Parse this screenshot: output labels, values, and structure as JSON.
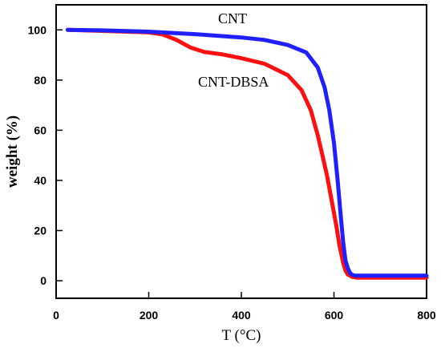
{
  "chart_data": {
    "type": "line",
    "title": "",
    "xlabel": "T (°C)",
    "ylabel": "weight (%)",
    "xlim": [
      0,
      800
    ],
    "ylim": [
      -7,
      110
    ],
    "xticks": [
      0,
      200,
      400,
      600,
      800
    ],
    "yticks": [
      0,
      20,
      40,
      60,
      80,
      100
    ],
    "grid": false,
    "legend": "none",
    "series": [
      {
        "name": "CNT",
        "color": "#2020ff",
        "x": [
          25,
          100,
          200,
          300,
          400,
          450,
          500,
          540,
          565,
          580,
          590,
          600,
          608,
          615,
          620,
          625,
          630,
          635,
          640,
          645,
          650,
          660,
          700,
          800
        ],
        "y": [
          100,
          99.8,
          99.3,
          98.3,
          97,
          96,
          94,
          91,
          85,
          77,
          68,
          55,
          40,
          25,
          15,
          8,
          5,
          3,
          2.3,
          2,
          2,
          2,
          2,
          2
        ]
      },
      {
        "name": "CNT-DBSA",
        "color": "#ff1010",
        "x": [
          25,
          100,
          200,
          230,
          260,
          290,
          320,
          360,
          400,
          450,
          500,
          530,
          550,
          565,
          575,
          585,
          595,
          605,
          612,
          620,
          625,
          630,
          640,
          650,
          700,
          800
        ],
        "y": [
          100,
          99.6,
          99,
          98.2,
          96,
          93,
          91.2,
          90.2,
          88.7,
          86.5,
          82,
          76,
          68,
          58,
          50,
          42,
          32,
          22,
          14,
          7,
          4,
          2.5,
          1.5,
          1.2,
          1.2,
          1.2
        ]
      }
    ]
  }
}
